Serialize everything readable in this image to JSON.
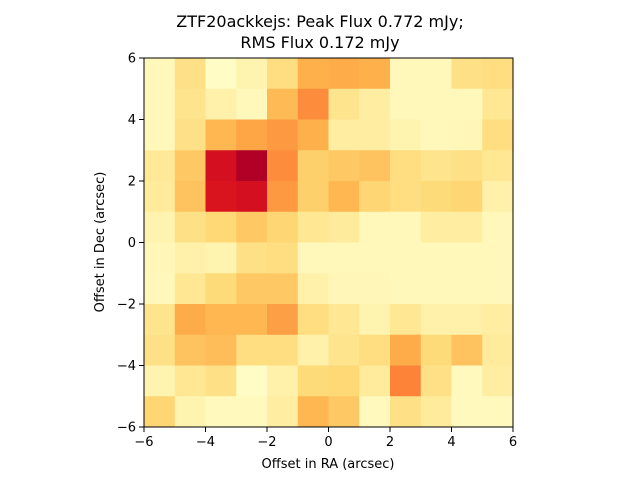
{
  "chart_data": {
    "type": "heatmap",
    "title_lines": [
      "ZTF20ackkejs: Peak Flux 0.772 mJy;",
      "RMS Flux 0.172 mJy"
    ],
    "xlabel": "Offset in RA (arcsec)",
    "ylabel": "Offset in Dec (arcsec)",
    "xlim": [
      -6,
      6
    ],
    "ylim": [
      -6,
      6
    ],
    "x_ticks": [
      -6,
      -4,
      -2,
      0,
      2,
      4,
      6
    ],
    "y_ticks": [
      -6,
      -4,
      -2,
      0,
      2,
      4,
      6
    ],
    "x_tick_labels": [
      "−6",
      "−4",
      "−2",
      "0",
      "2",
      "4",
      "6"
    ],
    "y_tick_labels": [
      "−6",
      "−4",
      "−2",
      "0",
      "2",
      "4",
      "6"
    ],
    "grid": false,
    "colormap": "YlOrRd",
    "vmin": 0,
    "vmax": 1,
    "pixel_size_arcsec": 1,
    "rows_top_to_bottom": [
      [
        0.05,
        0.2,
        0.02,
        0.08,
        0.22,
        0.38,
        0.4,
        0.38,
        0.05,
        0.05,
        0.2,
        0.22
      ],
      [
        0.05,
        0.18,
        0.1,
        0.05,
        0.35,
        0.5,
        0.18,
        0.12,
        0.05,
        0.05,
        0.05,
        0.16
      ],
      [
        0.05,
        0.2,
        0.36,
        0.42,
        0.46,
        0.38,
        0.12,
        0.12,
        0.08,
        0.05,
        0.06,
        0.22
      ],
      [
        0.15,
        0.3,
        0.8,
        0.9,
        0.5,
        0.28,
        0.3,
        0.32,
        0.22,
        0.18,
        0.2,
        0.16
      ],
      [
        0.14,
        0.32,
        0.78,
        0.8,
        0.46,
        0.28,
        0.36,
        0.26,
        0.22,
        0.24,
        0.26,
        0.1
      ],
      [
        0.08,
        0.2,
        0.25,
        0.3,
        0.26,
        0.16,
        0.14,
        0.05,
        0.05,
        0.12,
        0.12,
        0.05
      ],
      [
        0.06,
        0.1,
        0.08,
        0.2,
        0.22,
        0.05,
        0.05,
        0.05,
        0.05,
        0.05,
        0.05,
        0.05
      ],
      [
        0.05,
        0.16,
        0.24,
        0.3,
        0.3,
        0.1,
        0.06,
        0.06,
        0.05,
        0.05,
        0.05,
        0.05
      ],
      [
        0.18,
        0.4,
        0.36,
        0.36,
        0.44,
        0.22,
        0.16,
        0.08,
        0.16,
        0.1,
        0.1,
        0.12
      ],
      [
        0.2,
        0.32,
        0.34,
        0.22,
        0.22,
        0.1,
        0.18,
        0.22,
        0.4,
        0.24,
        0.32,
        0.14
      ],
      [
        0.08,
        0.16,
        0.2,
        0.02,
        0.1,
        0.24,
        0.25,
        0.14,
        0.52,
        0.2,
        0.04,
        0.12
      ],
      [
        0.26,
        0.08,
        0.04,
        0.04,
        0.12,
        0.36,
        0.3,
        0.04,
        0.2,
        0.14,
        0.04,
        0.04
      ]
    ]
  }
}
